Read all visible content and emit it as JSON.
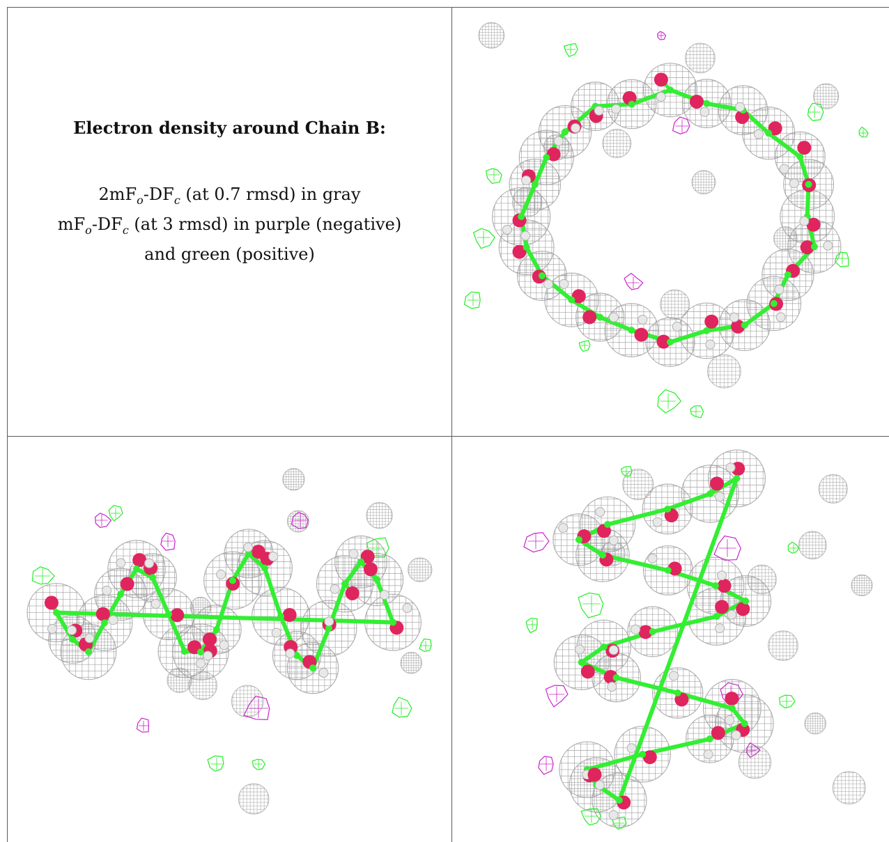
{
  "caption": {
    "title": "Electron density around Chain B:",
    "line1": {
      "prefix": "2mF",
      "s1": "o",
      "mid": "-DF",
      "s2": "c",
      "suffix": " (at 0.7 rmsd) in gray"
    },
    "line2": {
      "prefix": "mF",
      "s1": "o",
      "mid": "-DF",
      "s2": "c",
      "suffix": " (at 3 rmsd) in purple (negative)"
    },
    "line3": "and green (positive)"
  },
  "colors": {
    "mesh_2fofc": "#9a9a9a",
    "mesh_positive": "#22ee22",
    "mesh_negative": "#cc22cc",
    "oxygen": "#e0245e",
    "carbon": "#33ee33",
    "hydrogen": "#e8e8e8",
    "border": "#5a5a5a"
  },
  "panels": [
    {
      "name": "top-view",
      "icon": "density-map-ring-view"
    },
    {
      "name": "side-view",
      "icon": "density-map-side-view"
    },
    {
      "name": "tilted-view",
      "icon": "density-map-tilted-view"
    }
  ]
}
